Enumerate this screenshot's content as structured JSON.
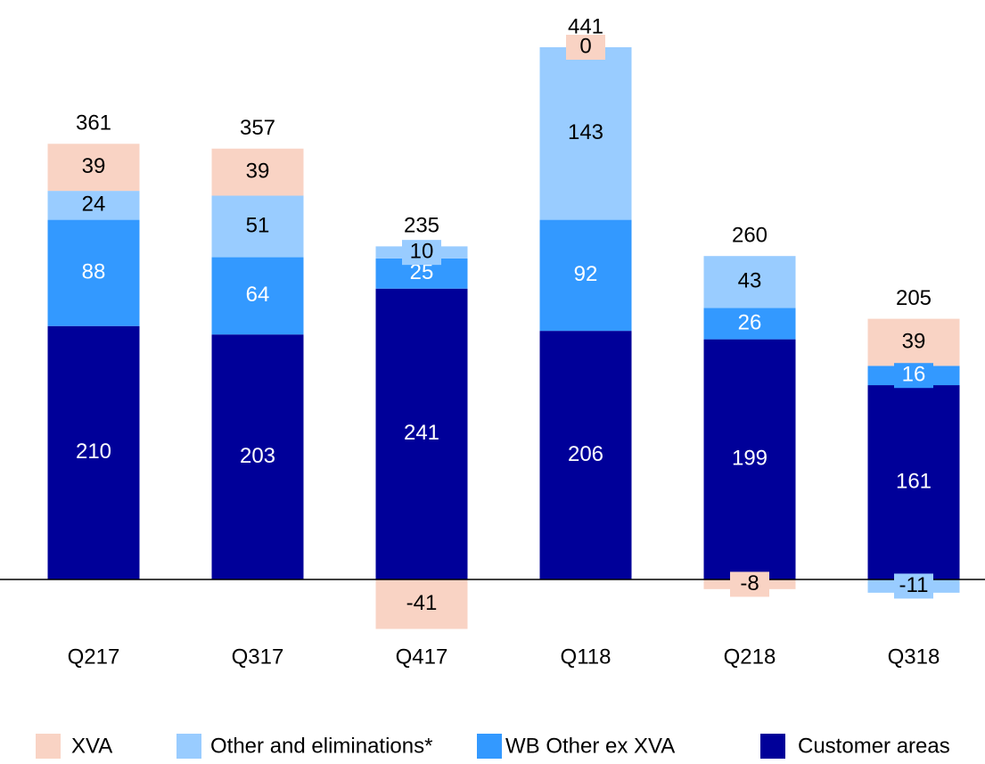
{
  "chart_data": {
    "type": "stacked_bar",
    "categories": [
      "Q217",
      "Q317",
      "Q417",
      "Q118",
      "Q218",
      "Q318"
    ],
    "series": [
      {
        "name": "XVA",
        "color": "#f9d3c4",
        "values": [
          39,
          39,
          -41,
          0,
          -8,
          39
        ]
      },
      {
        "name": "Other and eliminations*",
        "color": "#99ccff",
        "values": [
          24,
          51,
          10,
          143,
          43,
          -11
        ]
      },
      {
        "name": "WB Other ex XVA",
        "color": "#3399ff",
        "values": [
          88,
          64,
          25,
          92,
          26,
          16
        ]
      },
      {
        "name": "Customer areas",
        "color": "#000099",
        "values": [
          210,
          203,
          241,
          206,
          199,
          161
        ]
      }
    ],
    "totals": [
      361,
      357,
      235,
      441,
      260,
      205
    ],
    "legend": "bottom"
  }
}
